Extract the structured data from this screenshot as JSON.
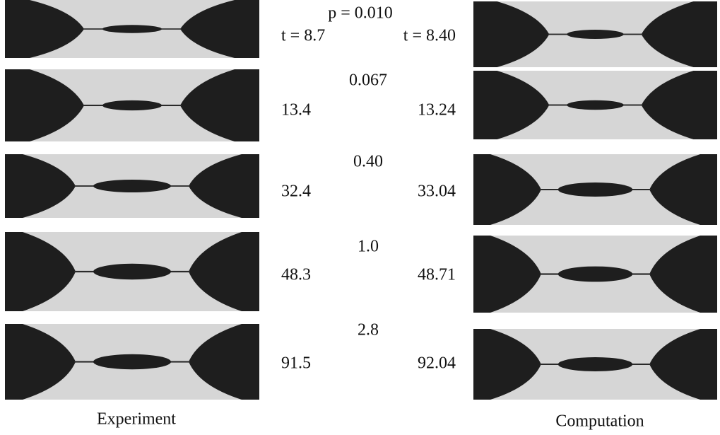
{
  "rows": [
    {
      "p": "p = 0.010",
      "t_experiment": "t = 8.7",
      "t_computation": "t = 8.40"
    },
    {
      "p": "0.067",
      "t_experiment": "13.4",
      "t_computation": "13.24"
    },
    {
      "p": "0.40",
      "t_experiment": "32.4",
      "t_computation": "33.04"
    },
    {
      "p": "1.0",
      "t_experiment": "48.3",
      "t_computation": "48.71"
    },
    {
      "p": "2.8",
      "t_experiment": "91.5",
      "t_computation": "92.04"
    }
  ],
  "captions": {
    "experiment": "Experiment",
    "computation": "Computation"
  }
}
